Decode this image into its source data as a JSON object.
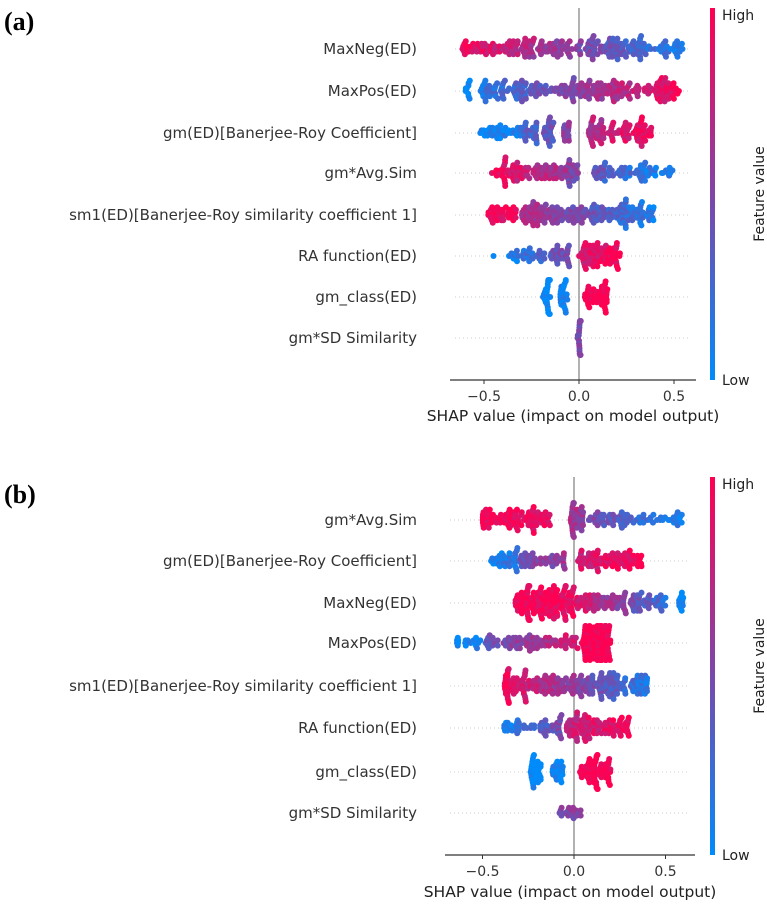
{
  "chart_data": [
    {
      "type": "scatter",
      "subtype": "shap-beeswarm",
      "panel_label": "(a)",
      "xlabel": "SHAP value (impact on model output)",
      "xticks": [
        "−0.5",
        "0.0",
        "0.5"
      ],
      "xtick_values": [
        -0.5,
        0.0,
        0.5
      ],
      "xlim": [
        -0.68,
        0.61
      ],
      "colorbar": {
        "title": "Feature value",
        "high": "High",
        "low": "Low",
        "high_color": "#ff0052",
        "low_color": "#008bfb"
      },
      "features": [
        {
          "name": "MaxNeg(ED)",
          "clusters": [
            [
              -0.62,
              0.55,
              260,
              0.95,
              0.1
            ]
          ]
        },
        {
          "name": "MaxPos(ED)",
          "clusters": [
            [
              -0.6,
              -0.57,
              10,
              0,
              0
            ],
            [
              -0.52,
              0.53,
              250,
              0.15,
              0.95
            ]
          ]
        },
        {
          "name": "gm(ED)[Banerjee-Roy Coefficient]",
          "clusters": [
            [
              -0.52,
              -0.3,
              40,
              0.05,
              0.1
            ],
            [
              -0.29,
              -0.22,
              25,
              0.3,
              0.3
            ],
            [
              -0.19,
              -0.13,
              25,
              0.4,
              0.4
            ],
            [
              -0.08,
              -0.05,
              15,
              0.55,
              0.55
            ],
            [
              0.05,
              0.13,
              35,
              0.7,
              0.7
            ],
            [
              0.15,
              0.38,
              60,
              0.8,
              0.95
            ]
          ]
        },
        {
          "name": "gm*Avg.Sim",
          "clusters": [
            [
              -0.46,
              -0.05,
              100,
              0.95,
              0.6
            ],
            [
              -0.06,
              0.0,
              20,
              0.5,
              0.5
            ],
            [
              0.07,
              0.13,
              15,
              0.4,
              0.4
            ],
            [
              0.13,
              0.5,
              60,
              0.3,
              0.05
            ]
          ]
        },
        {
          "name": "sm1(ED)[Banerjee-Roy similarity coefficient 1]",
          "clusters": [
            [
              -0.48,
              -0.33,
              40,
              0.95,
              0.95
            ],
            [
              -0.3,
              0.4,
              200,
              0.7,
              0.1
            ]
          ]
        },
        {
          "name": "RA function(ED)",
          "clusters": [
            [
              -0.45,
              -0.45,
              1,
              0,
              0
            ],
            [
              -0.37,
              -0.05,
              60,
              0.05,
              0.5
            ],
            [
              0.0,
              0.22,
              80,
              0.8,
              0.95
            ]
          ]
        },
        {
          "name": "gm_class(ED)",
          "clusters": [
            [
              -0.19,
              -0.15,
              25,
              0,
              0
            ],
            [
              -0.1,
              -0.06,
              25,
              0.05,
              0.05
            ],
            [
              0.03,
              0.15,
              50,
              1,
              1
            ]
          ]
        },
        {
          "name": "gm*SD Similarity",
          "clusters": [
            [
              -0.01,
              0.01,
              20,
              0.5,
              0.5
            ]
          ]
        }
      ]
    },
    {
      "type": "scatter",
      "subtype": "shap-beeswarm",
      "panel_label": "(b)",
      "xlabel": "SHAP value (impact on model output)",
      "xticks": [
        "−0.5",
        "0.0",
        "0.5"
      ],
      "xtick_values": [
        -0.5,
        0.0,
        0.5
      ],
      "xlim": [
        -0.7,
        0.66
      ],
      "colorbar": {
        "title": "Feature value",
        "high": "High",
        "low": "Low",
        "high_color": "#ff0052",
        "low_color": "#008bfb"
      },
      "features": [
        {
          "name": "gm*Avg.Sim",
          "clusters": [
            [
              -0.5,
              -0.13,
              100,
              0.98,
              0.9
            ],
            [
              -0.02,
              0.05,
              40,
              0.65,
              0.6
            ],
            [
              0.08,
              0.3,
              45,
              0.5,
              0.3
            ],
            [
              0.3,
              0.6,
              35,
              0.3,
              0.05
            ]
          ]
        },
        {
          "name": "gm(ED)[Banerjee-Roy Coefficient]",
          "clusters": [
            [
              -0.46,
              -0.3,
              35,
              0.05,
              0.2
            ],
            [
              -0.3,
              -0.05,
              50,
              0.4,
              0.6
            ],
            [
              0.02,
              0.37,
              90,
              0.8,
              0.95
            ]
          ]
        },
        {
          "name": "MaxNeg(ED)",
          "clusters": [
            [
              -0.32,
              0.0,
              160,
              0.98,
              0.95
            ],
            [
              0.0,
              0.5,
              120,
              0.9,
              0.2
            ],
            [
              0.57,
              0.6,
              12,
              0,
              0
            ]
          ]
        },
        {
          "name": "MaxPos(ED)",
          "clusters": [
            [
              -0.64,
              -0.63,
              6,
              0,
              0
            ],
            [
              -0.6,
              -0.48,
              15,
              0.05,
              0.1
            ],
            [
              -0.48,
              0.05,
              90,
              0.4,
              0.85
            ],
            [
              0.05,
              0.2,
              120,
              1,
              1
            ]
          ]
        },
        {
          "name": "sm1(ED)[Banerjee-Roy similarity coefficient 1]",
          "clusters": [
            [
              -0.38,
              -0.36,
              20,
              1,
              1
            ],
            [
              -0.36,
              0.4,
              230,
              0.9,
              0.15
            ]
          ]
        },
        {
          "name": "RA function(ED)",
          "clusters": [
            [
              -0.39,
              -0.05,
              60,
              0.05,
              0.5
            ],
            [
              -0.04,
              0.3,
              110,
              0.75,
              0.95
            ]
          ]
        },
        {
          "name": "gm_class(ED)",
          "clusters": [
            [
              -0.24,
              -0.18,
              30,
              0,
              0
            ],
            [
              -0.12,
              -0.06,
              25,
              0.05,
              0.05
            ],
            [
              0.03,
              0.2,
              70,
              1,
              1
            ]
          ]
        },
        {
          "name": "gm*SD Similarity",
          "clusters": [
            [
              -0.08,
              0.04,
              20,
              0.5,
              0.5
            ]
          ]
        }
      ]
    }
  ]
}
